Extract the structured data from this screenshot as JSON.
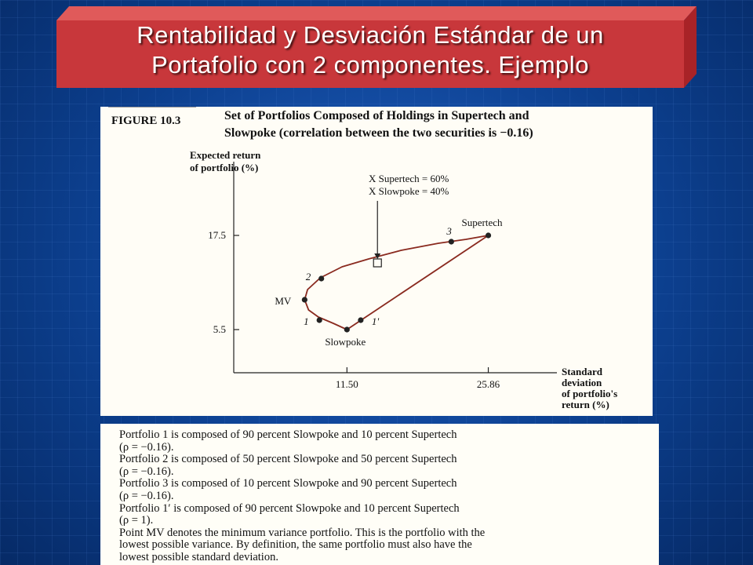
{
  "slide": {
    "title_line1": "Rentabilidad y Desviación Estándar de un",
    "title_line2": "Portafolio con 2 componentes. Ejemplo",
    "colors": {
      "banner_red": "#c8373b",
      "background_blue": "#0b3f8c",
      "curve": "#8a2a1f"
    }
  },
  "figure": {
    "label": "FIGURE 10.3",
    "caption_line1": "Set of Portfolios Composed of Holdings in Supertech and",
    "caption_line2": "Slowpoke (correlation between the two securities is −0.16)",
    "annotation_line1": "X Supertech = 60%",
    "annotation_line2": "X Slowpoke = 40%"
  },
  "chart_data": {
    "type": "line",
    "title": "Set of Portfolios Composed of Holdings in Supertech and Slowpoke (correlation between the two securities is −0.16)",
    "xlabel": "Standard deviation of portfolio's return (%)",
    "ylabel": "Expected return of portfolio (%)",
    "xlabel_lines": [
      "Standard",
      "deviation",
      "of portfolio's",
      "return (%)"
    ],
    "ylabel_lines": [
      "Expected return",
      "of portfolio (%)"
    ],
    "xticks": [
      11.5,
      25.86
    ],
    "xtick_labels": [
      "11.50",
      "25.86"
    ],
    "yticks": [
      5.5,
      17.5
    ],
    "ytick_labels": [
      "5.5",
      "17.5"
    ],
    "xlim": [
      0,
      30
    ],
    "ylim": [
      0,
      23
    ],
    "grid": false,
    "series": [
      {
        "name": "ρ = −0.16",
        "x": [
          11.5,
          10.1,
          8.6,
          7.6,
          7.2,
          7.5,
          8.8,
          11.0,
          13.7,
          17.0,
          20.8,
          23.6,
          25.86
        ],
        "y": [
          5.5,
          6.3,
          7.1,
          8.0,
          9.3,
          10.6,
          12.1,
          13.5,
          14.5,
          15.6,
          16.5,
          17.0,
          17.5
        ]
      },
      {
        "name": "ρ = 1",
        "x": [
          11.5,
          25.86
        ],
        "y": [
          5.5,
          17.5
        ]
      }
    ],
    "points": [
      {
        "label": "Slowpoke",
        "x": 11.5,
        "y": 5.5
      },
      {
        "label": "1",
        "x": 8.7,
        "y": 6.7
      },
      {
        "label": "MV",
        "x": 7.2,
        "y": 9.3
      },
      {
        "label": "2",
        "x": 8.9,
        "y": 12.0
      },
      {
        "label": "3",
        "x": 22.1,
        "y": 16.7
      },
      {
        "label": "Supertech",
        "x": 25.86,
        "y": 17.5
      },
      {
        "label": "1'",
        "x": 12.9,
        "y": 6.7
      }
    ],
    "highlight": {
      "label": "X Supertech = 60%, X Slowpoke = 40%",
      "x": 14.6,
      "y": 14.0
    }
  },
  "description": {
    "lines": [
      "Portfolio 1 is composed of 90 percent Slowpoke and 10 percent Supertech",
      "(ρ = −0.16).",
      "Portfolio 2 is composed of 50 percent Slowpoke and 50 percent Supertech",
      "(ρ = −0.16).",
      "Portfolio 3 is composed of 10 percent Slowpoke and 90 percent Supertech",
      "(ρ = −0.16).",
      "Portfolio 1′ is composed of 90 percent Slowpoke and 10 percent Supertech",
      "(ρ = 1).",
      "Point MV denotes the minimum variance portfolio. This is the portfolio with the",
      "lowest possible variance. By definition, the same portfolio must also have the",
      "lowest possible standard deviation."
    ]
  }
}
